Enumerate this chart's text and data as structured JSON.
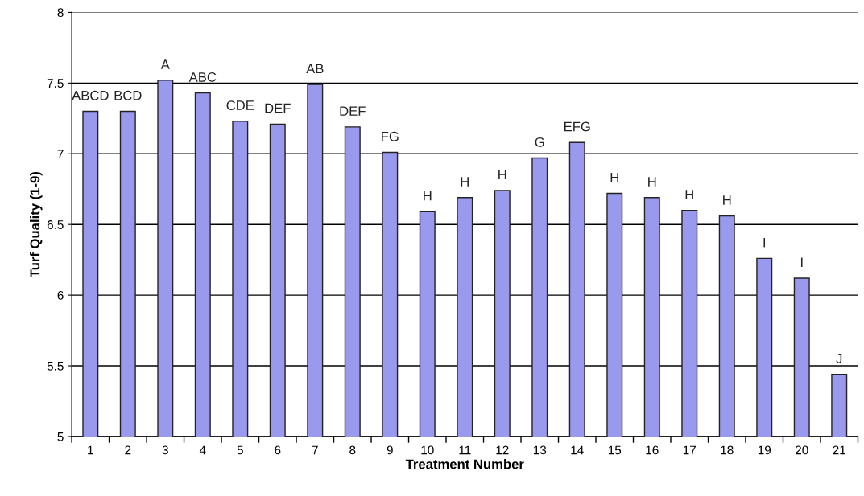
{
  "chart_data": {
    "type": "bar",
    "xlabel": "Treatment Number",
    "ylabel": "Turf Quality (1-9)",
    "categories": [
      "1",
      "2",
      "3",
      "4",
      "5",
      "6",
      "7",
      "8",
      "9",
      "10",
      "11",
      "12",
      "13",
      "14",
      "15",
      "16",
      "17",
      "18",
      "19",
      "20",
      "21"
    ],
    "values": [
      7.3,
      7.3,
      7.52,
      7.43,
      7.23,
      7.21,
      7.49,
      7.19,
      7.01,
      6.59,
      6.69,
      6.74,
      6.97,
      7.08,
      6.72,
      6.69,
      6.6,
      6.56,
      6.26,
      6.12,
      5.44
    ],
    "value_labels": [
      "ABCD",
      "BCD",
      "A",
      "ABC",
      "CDE",
      "DEF",
      "AB",
      "DEF",
      "FG",
      "H",
      "H",
      "H",
      "G",
      "EFG",
      "H",
      "H",
      "H",
      "H",
      "I",
      "I",
      "J"
    ],
    "color": "#9999ee",
    "ylim": [
      5,
      8
    ],
    "yticks": [
      5,
      5.5,
      6,
      6.5,
      7,
      7.5,
      8
    ],
    "grid": "y"
  }
}
